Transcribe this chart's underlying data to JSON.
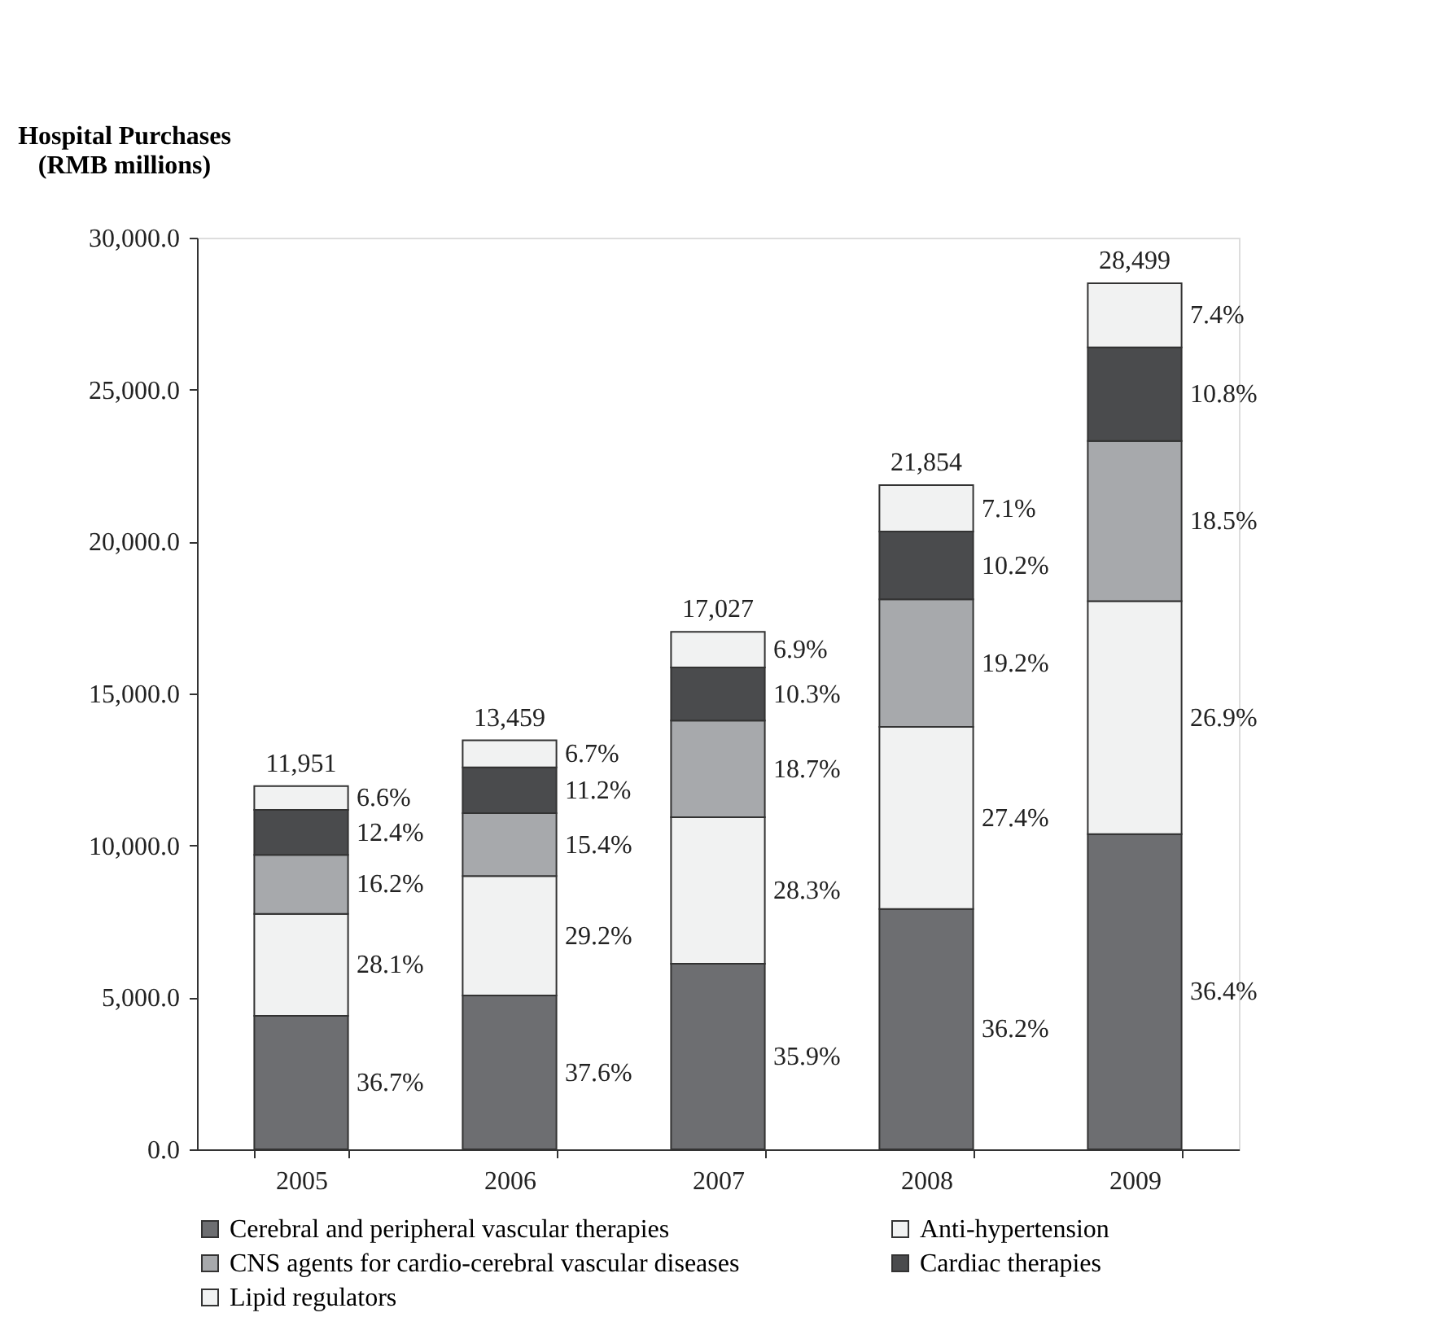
{
  "chart_data": {
    "type": "bar",
    "stacked": true,
    "ylabel": "Hospital Purchases\n(RMB millions)",
    "categories": [
      "2005",
      "2006",
      "2007",
      "2008",
      "2009"
    ],
    "series": [
      {
        "name": "Cerebral and peripheral vascular therapies",
        "color": "#6d6e71",
        "values": [
          4390,
          5060,
          6110,
          7910,
          10370
        ]
      },
      {
        "name": "Anti-hypertension",
        "color": "#f1f2f2",
        "values": [
          3360,
          3930,
          4820,
          5990,
          7670
        ]
      },
      {
        "name": "CNS agents for cardio-cerebral vascular diseases",
        "color": "#a7a9ac",
        "values": [
          1940,
          2070,
          3180,
          4200,
          5270
        ]
      },
      {
        "name": "Cardiac therapies",
        "color": "#4a4b4d",
        "values": [
          1480,
          1510,
          1750,
          2230,
          3080
        ]
      },
      {
        "name": "Lipid regulators",
        "color": "#f1f2f2",
        "values": [
          781,
          889,
          1167,
          1524,
          2109
        ]
      }
    ],
    "totals": [
      "11,951",
      "13,459",
      "17,027",
      "21,854",
      "28,499"
    ],
    "annotations": [
      "36.7%",
      "28.1%",
      "16.2%",
      "12.4%",
      "6.6%",
      "37.6%",
      "29.2%",
      "15.4%",
      "11.2%",
      "6.7%",
      "35.9%",
      "28.3%",
      "18.7%",
      "10.3%",
      "6.9%",
      "36.2%",
      "27.4%",
      "19.2%",
      "10.2%",
      "7.1%",
      "36.4%",
      "26.9%",
      "18.5%",
      "10.8%",
      "7.4%"
    ],
    "ylim": [
      0,
      30000
    ],
    "yticks": [
      {
        "value": 0,
        "label": "0.0"
      },
      {
        "value": 5000,
        "label": "5,000.0"
      },
      {
        "value": 10000,
        "label": "10,000.0"
      },
      {
        "value": 15000,
        "label": "15,000.0"
      },
      {
        "value": 20000,
        "label": "20,000.0"
      },
      {
        "value": 25000,
        "label": "25,000.0"
      },
      {
        "value": 30000,
        "label": "30,000.0"
      }
    ],
    "grid": false,
    "legend": "bottom"
  }
}
